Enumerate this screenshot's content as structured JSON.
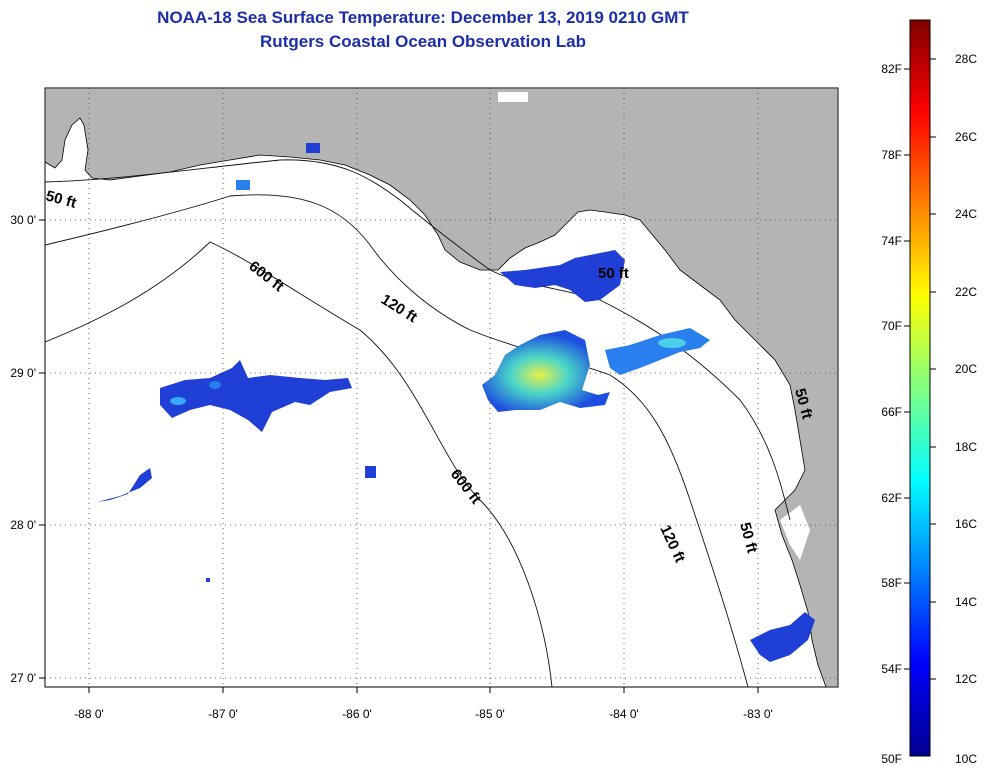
{
  "title": "NOAA-18 Sea Surface Temperature:  December 13, 2019 0210 GMT",
  "subtitle": "Rutgers Coastal Ocean Observation Lab",
  "map": {
    "lon_ticks": [
      "-88 0'",
      "-87 0'",
      "-86 0'",
      "-85 0'",
      "-84 0'",
      "-83 0'"
    ],
    "lat_ticks": [
      "30 0'",
      "29 0'",
      "28 0'",
      "27 0'"
    ],
    "contour_labels": [
      "50 ft",
      "600 ft",
      "120 ft",
      "50 ft",
      "600 ft",
      "120 ft",
      "50 ft",
      "50 ft"
    ],
    "colors": {
      "land": "#b4b4b4",
      "ocean": "#ffffff",
      "grid": "#333333",
      "contour": "#111111"
    }
  },
  "colorbar": {
    "f_labels": [
      "82F",
      "78F",
      "74F",
      "70F",
      "66F",
      "62F",
      "58F",
      "54F",
      "50F"
    ],
    "c_labels": [
      "28C",
      "26C",
      "24C",
      "22C",
      "20C",
      "18C",
      "16C",
      "14C",
      "12C",
      "10C"
    ],
    "colormap": "jet"
  }
}
